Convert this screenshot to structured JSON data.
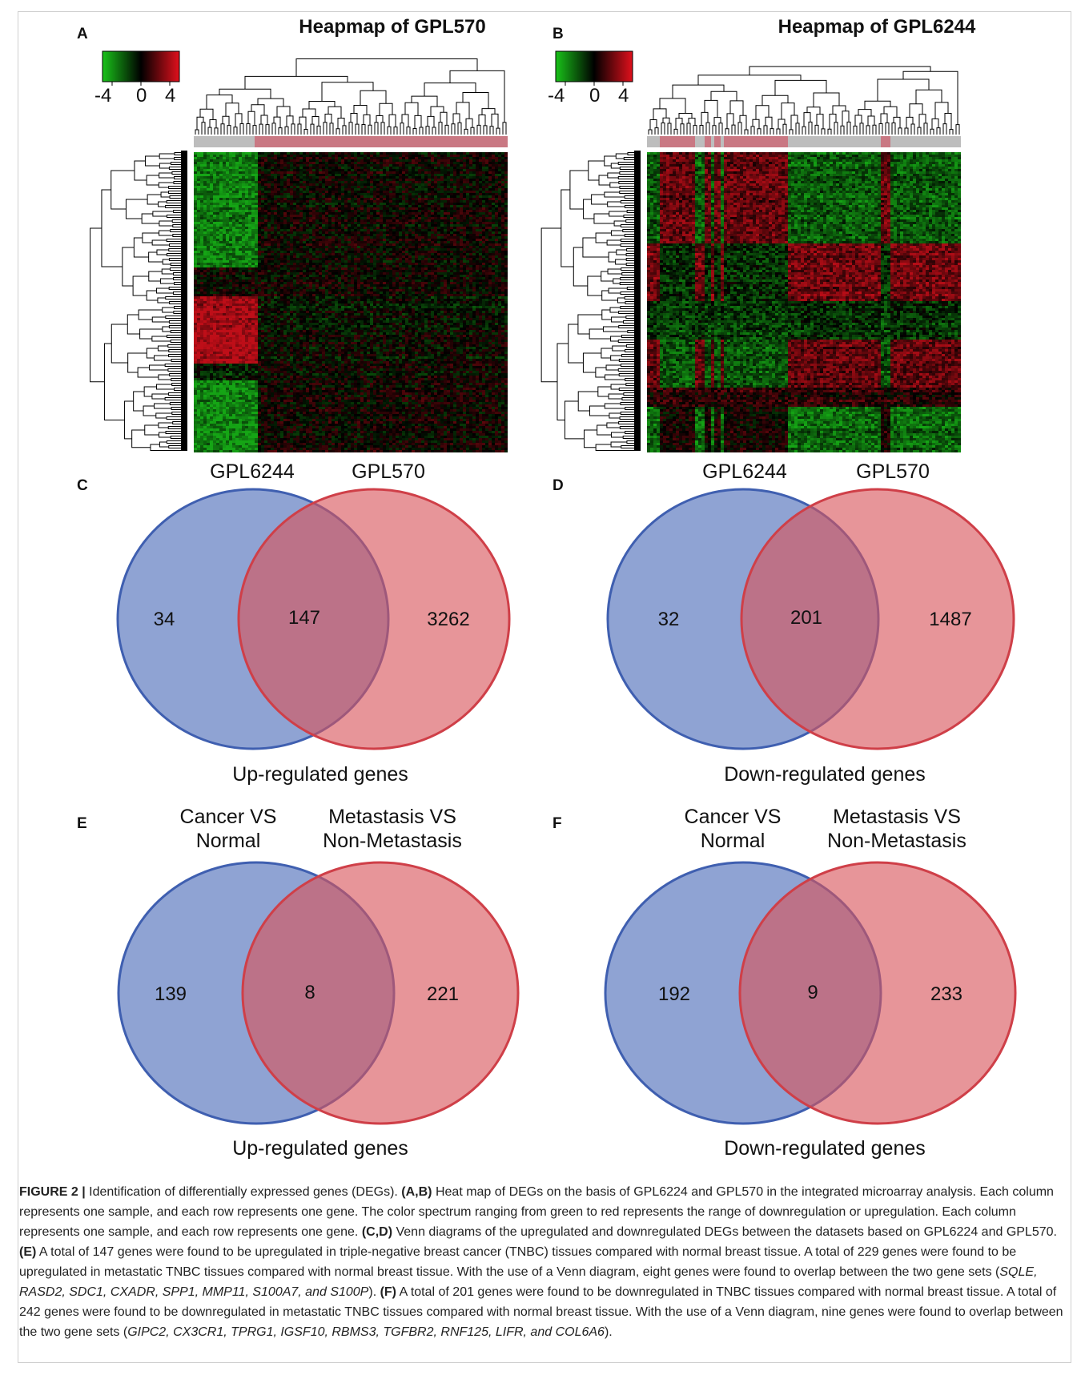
{
  "panels": {
    "A": {
      "letter": "A",
      "title": "Heapmap of GPL570",
      "scale": [
        "-4",
        "0",
        "4"
      ]
    },
    "B": {
      "letter": "B",
      "title": "Heapmap of GPL6244",
      "scale": [
        "-4",
        "0",
        "4"
      ]
    },
    "C": {
      "letter": "C",
      "left_label": "GPL6244",
      "right_label": "GPL570",
      "left_only": "34",
      "overlap": "147",
      "right_only": "3262",
      "bottom_label": "Up-regulated genes"
    },
    "D": {
      "letter": "D",
      "left_label": "GPL6244",
      "right_label": "GPL570",
      "left_only": "32",
      "overlap": "201",
      "right_only": "1487",
      "bottom_label": "Down-regulated genes"
    },
    "E": {
      "letter": "E",
      "left_label_1": "Cancer VS",
      "left_label_2": "Normal",
      "right_label_1": "Metastasis VS",
      "right_label_2": "Non-Metastasis",
      "left_only": "139",
      "overlap": "8",
      "right_only": "221",
      "bottom_label": "Up-regulated genes"
    },
    "F": {
      "letter": "F",
      "left_label_1": "Cancer VS",
      "left_label_2": "Normal",
      "right_label_1": "Metastasis VS",
      "right_label_2": "Non-Metastasis",
      "left_only": "192",
      "overlap": "9",
      "right_only": "233",
      "bottom_label": "Down-regulated genes"
    }
  },
  "colors": {
    "venn_left": "#4a6bb8",
    "venn_right": "#d9545b",
    "heat_low": "#19c219",
    "heat_mid": "#000000",
    "heat_high": "#e0101c",
    "bar_cancer": "#c97883",
    "bar_normal": "#bdbdbd"
  },
  "caption": {
    "figure_label": "FIGURE 2 |",
    "text_1": " Identification of differentially expressed genes (DEGs). ",
    "ref_ab": "(A,B)",
    "text_2": " Heat map of DEGs on the basis of GPL6224 and GPL570 in the integrated microarray analysis. Each column represents one sample, and each row represents one gene. The color spectrum ranging from green to red represents the range of downregulation or upregulation. Each column represents one sample, and each row represents one gene. ",
    "ref_cd": "(C,D)",
    "text_3": " Venn diagrams of the upregulated and downregulated DEGs between the datasets based on GPL6224 and GPL570. ",
    "ref_e": "(E)",
    "text_4": " A total of 147 genes were found to be upregulated in triple-negative breast cancer (TNBC) tissues compared with normal breast tissue. A total of 229 genes were found to be upregulated in metastatic TNBC tissues compared with normal breast tissue. With the use of a Venn diagram, eight genes were found to overlap between the two gene sets (",
    "genes_e": "SQLE, RASD2, SDC1, CXADR, SPP1, MMP11, S100A7, and S100P",
    "text_5": "). ",
    "ref_f": "(F)",
    "text_6": " A total of 201 genes were found to be downregulated in TNBC tissues compared with normal breast tissue. A total of 242 genes were found to be downregulated in metastatic TNBC tissues compared with normal breast tissue. With the use of a Venn diagram, nine genes were found to overlap between the two gene sets (",
    "genes_f": "GIPC2, CX3CR1, TPRG1, IGSF10, RBMS3, TGFBR2, RNF125, LIFR, and COL6A6",
    "text_7": ")."
  }
}
